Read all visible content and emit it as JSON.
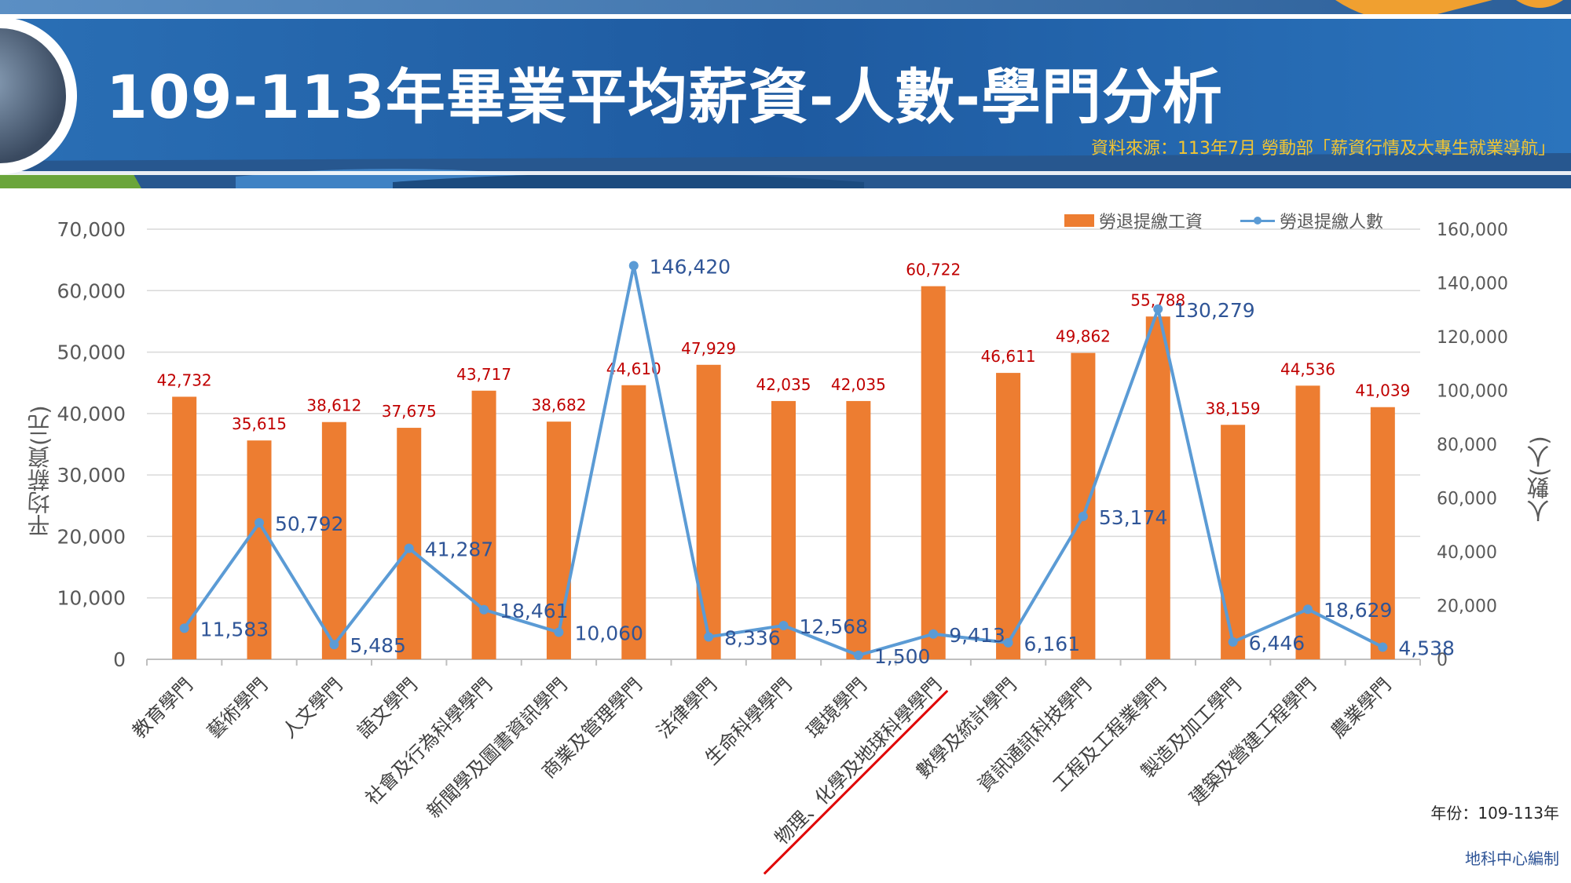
{
  "header": {
    "title": "109-113年畢業平均薪資-人數-學門分析",
    "source": "資料來源：113年7月 勞動部「薪資行情及大專生就業導航」"
  },
  "colors": {
    "bar": "#ed7d31",
    "line": "#5b9bd5",
    "bar_label": "#c00000",
    "line_label": "#2f5597",
    "highlight": "#e00000",
    "banner": "#1f5ea6"
  },
  "chart_data": {
    "type": "bar",
    "categories": [
      "教育學門",
      "藝術學門",
      "人文學門",
      "語文學門",
      "社會及行為科學學門",
      "新聞學及圖書資訊學門",
      "商業及管理學門",
      "法律學門",
      "生命科學學門",
      "環境學門",
      "物理、化學及地球科學學門",
      "數學及統計學門",
      "資訊通訊科技學門",
      "工程及工程業學門",
      "製造及加工學門",
      "建築及營建工程學門",
      "農業學門"
    ],
    "series": [
      {
        "name": "勞退提繳工資",
        "type": "bar",
        "axis": "left",
        "values": [
          42732,
          35615,
          38612,
          37675,
          43717,
          38682,
          44610,
          47929,
          42035,
          42035,
          60722,
          46611,
          49862,
          55788,
          38159,
          44536,
          41039
        ],
        "labels": [
          "42,732",
          "35,615",
          "38,612",
          "37,675",
          "43,717",
          "38,682",
          "44,610",
          "47,929",
          "42,035",
          "42,035",
          "60,722",
          "46,611",
          "49,862",
          "55,788",
          "38,159",
          "44,536",
          "41,039"
        ]
      },
      {
        "name": "勞退提繳人數",
        "type": "line",
        "axis": "right",
        "values": [
          11583,
          50792,
          5485,
          41287,
          18461,
          10060,
          146420,
          8336,
          12568,
          1500,
          9413,
          6161,
          53174,
          130279,
          6446,
          18629,
          4538
        ],
        "labels": [
          "11,583",
          "50,792",
          "5,485",
          "41,287",
          "18,461",
          "10,060",
          "146,420",
          "8,336",
          "12,568",
          "1,500",
          "9,413",
          "6,161",
          "53,174",
          "130,279",
          "6,446",
          "18,629",
          "4,538"
        ]
      }
    ],
    "ylabel": "平均薪資(元)",
    "y2label": "人數(人)",
    "ylim": [
      0,
      70000
    ],
    "y2lim": [
      0,
      160000
    ],
    "yticks": [
      "0",
      "10,000",
      "20,000",
      "30,000",
      "40,000",
      "50,000",
      "60,000",
      "70,000"
    ],
    "y2ticks": [
      "0",
      "20,000",
      "40,000",
      "60,000",
      "80,000",
      "100,000",
      "120,000",
      "140,000",
      "160,000"
    ],
    "grid": true,
    "legend": "top-right",
    "highlighted_category": "物理、化學及地球科學學門"
  },
  "notes": {
    "year": "年份：109-113年",
    "author": "地科中心編制"
  }
}
